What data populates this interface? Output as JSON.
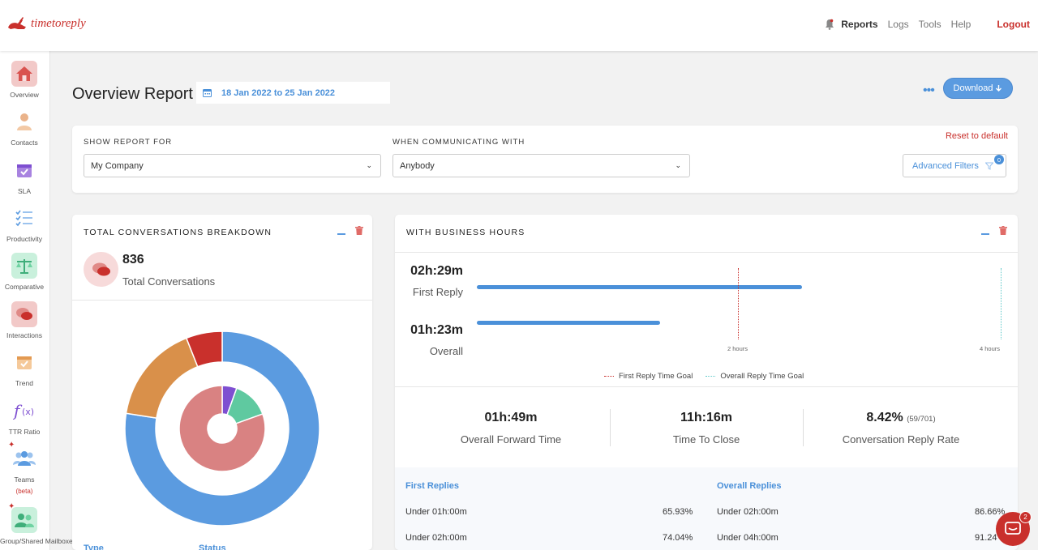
{
  "brand": {
    "name": "timetoreply",
    "color": "#c9302c"
  },
  "nav": {
    "reports": "Reports",
    "logs": "Logs",
    "tools": "Tools",
    "help": "Help",
    "logout": "Logout"
  },
  "sidebar": [
    {
      "label": "Overview",
      "icon": "home-icon"
    },
    {
      "label": "Contacts",
      "icon": "contact-icon"
    },
    {
      "label": "SLA",
      "icon": "calendar-check-icon"
    },
    {
      "label": "Productivity",
      "icon": "checklist-icon"
    },
    {
      "label": "Comparative",
      "icon": "scale-icon"
    },
    {
      "label": "Interactions",
      "icon": "chat-icon"
    },
    {
      "label": "Trend",
      "icon": "trend-calendar-icon"
    },
    {
      "label": "TTR Ratio",
      "icon": "function-icon"
    },
    {
      "label": "Teams",
      "icon": "team-icon",
      "badge": "(beta)"
    },
    {
      "label": "Group/Shared Mailboxes",
      "icon": "shared-mailbox-icon"
    }
  ],
  "header": {
    "title": "Overview Report",
    "date_range": "18 Jan 2022 to 25 Jan 2022",
    "download": "Download"
  },
  "filters": {
    "show_label": "SHOW REPORT FOR",
    "show_value": "My Company",
    "comm_label": "WHEN COMMUNICATING WITH",
    "comm_value": "Anybody",
    "reset": "Reset to default",
    "advanced": "Advanced Filters",
    "advanced_count": "0"
  },
  "breakdown": {
    "title": "TOTAL CONVERSATIONS BREAKDOWN",
    "total": "836",
    "total_label": "Total Conversations",
    "type_label": "Type",
    "status_label": "Status"
  },
  "chart_data": {
    "type": "pie",
    "rings": [
      {
        "ring": "outer",
        "slices": [
          {
            "value": 0.775,
            "color": "#5b9be0"
          },
          {
            "value": 0.165,
            "color": "#d9904a"
          },
          {
            "value": 0.06,
            "color": "#c9302c"
          }
        ]
      },
      {
        "ring": "inner",
        "slices": [
          {
            "value": 0.055,
            "color": "#7e4fd1"
          },
          {
            "value": 0.14,
            "color": "#5fc9a0"
          },
          {
            "value": 0.805,
            "color": "#d98282"
          }
        ]
      }
    ]
  },
  "business": {
    "title": "WITH BUSINESS HOURS",
    "first_reply": {
      "value": "02h:29m",
      "label": "First Reply",
      "fraction_of_axis": 0.62
    },
    "overall": {
      "value": "01h:23m",
      "label": "Overall",
      "fraction_of_axis": 0.35
    },
    "tick_2h": "2 hours",
    "tick_4h": "4 hours",
    "legend_first": "First Reply Time Goal",
    "legend_overall": "Overall Reply Time Goal",
    "colors": {
      "bar": "#4a90d9",
      "first_goal": "#c9302c",
      "overall_goal": "#5fc9c9"
    }
  },
  "metrics": [
    {
      "value": "01h:49m",
      "label": "Overall Forward Time",
      "extra": ""
    },
    {
      "value": "11h:16m",
      "label": "Time To Close",
      "extra": ""
    },
    {
      "value": "8.42%",
      "label": "Conversation Reply Rate",
      "extra": "(59/701)"
    }
  ],
  "replies": {
    "first_header": "First Replies",
    "overall_header": "Overall Replies",
    "first_rows": [
      {
        "label": "Under 01h:00m",
        "value": "65.93%"
      },
      {
        "label": "Under 02h:00m",
        "value": "74.04%"
      }
    ],
    "overall_rows": [
      {
        "label": "Under 02h:00m",
        "value": "86.66%"
      },
      {
        "label": "Under 04h:00m",
        "value": "91.24"
      }
    ]
  },
  "chat": {
    "badge": "2"
  }
}
